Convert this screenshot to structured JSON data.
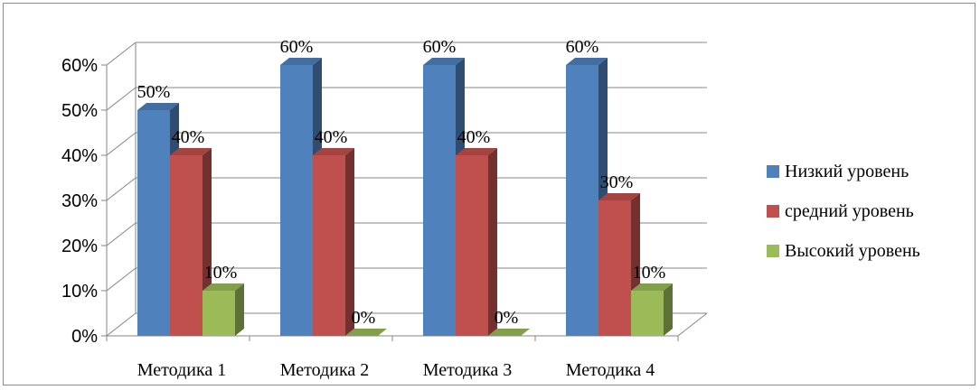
{
  "chart_data": {
    "type": "bar",
    "categories": [
      "Методика 1",
      "Методика 2",
      "Методика 3",
      "Методика 4"
    ],
    "series": [
      {
        "name": "Низкий уровень",
        "values": [
          50,
          60,
          60,
          60
        ],
        "labels": [
          "50%",
          "60%",
          "60%",
          "60%"
        ],
        "color": "#4F81BD"
      },
      {
        "name": "средний уровень",
        "values": [
          40,
          40,
          40,
          30
        ],
        "labels": [
          "40%",
          "40%",
          "40%",
          "30%"
        ],
        "color": "#C0504D"
      },
      {
        "name": "Высокий уровень",
        "values": [
          10,
          0,
          0,
          10
        ],
        "labels": [
          "10%",
          "0%",
          "0%",
          "10%"
        ],
        "color": "#9BBB59"
      }
    ],
    "y_ticks": [
      "0%",
      "10%",
      "20%",
      "30%",
      "40%",
      "50%",
      "60%"
    ],
    "ylim": [
      0,
      60
    ],
    "grid": true,
    "legend_position": "right",
    "style": "3d-clustered-column"
  }
}
